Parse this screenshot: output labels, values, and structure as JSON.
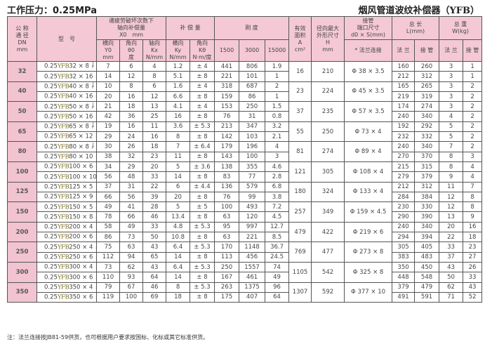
{
  "header": {
    "pressure": "工作压力：0.25MPa",
    "title": "烟风管道波纹补偿器（YFB）"
  },
  "columns": {
    "dn": "公 称\n通 径\nDN\nmm",
    "model": "型　号",
    "axial_group": "诸疲劳破坏次数下\n轴向补偿量\nX0　mm",
    "axial_cycles": [
      "1500",
      "3000",
      "15000"
    ],
    "comp_group": "补 偿 量",
    "lateral": "横向\nY0\nmm",
    "angular": "角向\nθ0\n度",
    "stiff_group": "刚 度",
    "kx": "轴向\nKx\nN/mm",
    "ky": "横向\nKy\nN/mm",
    "ktheta": "角向\nKθ\nN·m/度",
    "area": "有效\n面积\nA\ncm²",
    "h": "径向最大\n外形尺寸\nH\nmm",
    "pipe_group": "接管\n端口尺寸\nd0 × S(mm)",
    "pipe_sub": "* 法兰连接",
    "length_group": "总 长\nL(mm)",
    "weight_group": "总 重\nW(kg)",
    "flange": "法 兰",
    "pipe": "接 管"
  },
  "jf": [
    "J",
    "F"
  ],
  "groups": [
    {
      "dn": "32",
      "a": "16",
      "h": "210",
      "d": "Φ 38 × 3.5",
      "rows": [
        {
          "prefix": "0.25",
          "series": "YFB",
          "model": "32 × 8",
          "x": [
            "7",
            "6",
            "4"
          ],
          "y": "1.2",
          "t": "± 4",
          "kx": "441",
          "ky": "806",
          "kt": "1.9",
          "lf": "160",
          "lp": "260",
          "wf": "3",
          "wp": "1"
        },
        {
          "prefix": "0.25",
          "series": "YFB",
          "model": "32 × 16",
          "x": [
            "14",
            "12",
            "8"
          ],
          "y": "5.1",
          "t": "± 8",
          "kx": "221",
          "ky": "101",
          "kt": "1",
          "lf": "212",
          "lp": "312",
          "wf": "3",
          "wp": "1"
        }
      ]
    },
    {
      "dn": "40",
      "a": "23",
      "h": "224",
      "d": "Φ 45 × 3.5",
      "rows": [
        {
          "prefix": "0.25",
          "series": "YFB",
          "model": "40 × 8",
          "x": [
            "10",
            "8",
            "6"
          ],
          "y": "1.6",
          "t": "± 4",
          "kx": "318",
          "ky": "687",
          "kt": "2",
          "lf": "165",
          "lp": "265",
          "wf": "3",
          "wp": "2"
        },
        {
          "prefix": "0.25",
          "series": "YFB",
          "model": "40 × 16",
          "x": [
            "20",
            "16",
            "12"
          ],
          "y": "6.6",
          "t": "± 8",
          "kx": "159",
          "ky": "86",
          "kt": "1",
          "lf": "219",
          "lp": "319",
          "wf": "3",
          "wp": "2"
        }
      ]
    },
    {
      "dn": "50",
      "a": "37",
      "h": "235",
      "d": "Φ 57 × 3.5",
      "rows": [
        {
          "prefix": "0.25",
          "series": "YFB",
          "model": "50 × 8",
          "x": [
            "21",
            "18",
            "13"
          ],
          "y": "4.1",
          "t": "± 4",
          "kx": "153",
          "ky": "250",
          "kt": "1.5",
          "lf": "174",
          "lp": "274",
          "wf": "3",
          "wp": "2"
        },
        {
          "prefix": "0.25",
          "series": "YFB",
          "model": "50 × 16",
          "x": [
            "42",
            "36",
            "25"
          ],
          "y": "16",
          "t": "± 8",
          "kx": "76",
          "ky": "31",
          "kt": "0.8",
          "lf": "240",
          "lp": "340",
          "wf": "4",
          "wp": "2"
        }
      ]
    },
    {
      "dn": "65",
      "a": "55",
      "h": "250",
      "d": "Φ 73 × 4",
      "rows": [
        {
          "prefix": "0.25",
          "series": "YFB",
          "model": "65 × 8",
          "x": [
            "19",
            "16",
            "11"
          ],
          "y": "3.6",
          "t": "± 5.3",
          "kx": "213",
          "ky": "347",
          "kt": "3.2",
          "lf": "192",
          "lp": "292",
          "wf": "5",
          "wp": "2"
        },
        {
          "prefix": "0.25",
          "series": "YFB",
          "model": "65 × 12",
          "x": [
            "29",
            "24",
            "16"
          ],
          "y": "8",
          "t": "± 8",
          "kx": "142",
          "ky": "103",
          "kt": "2.1",
          "lf": "232",
          "lp": "332",
          "wf": "5",
          "wp": "2"
        }
      ]
    },
    {
      "dn": "80",
      "a": "81",
      "h": "274",
      "d": "Φ 89 × 4",
      "rows": [
        {
          "prefix": "0.25",
          "series": "YFB",
          "model": "80 × 8",
          "x": [
            "30",
            "26",
            "18"
          ],
          "y": "7",
          "t": "± 6.4",
          "kx": "179",
          "ky": "196",
          "kt": "4",
          "lf": "240",
          "lp": "340",
          "wf": "7",
          "wp": "2"
        },
        {
          "prefix": "0.25",
          "series": "YFB",
          "model": "80 × 10",
          "x": [
            "38",
            "32",
            "23"
          ],
          "y": "11",
          "t": "± 8",
          "kx": "143",
          "ky": "100",
          "kt": "3",
          "lf": "270",
          "lp": "370",
          "wf": "8",
          "wp": "3"
        }
      ]
    },
    {
      "dn": "100",
      "a": "121",
      "h": "305",
      "d": "Φ 108 × 4",
      "rows": [
        {
          "prefix": "0.25",
          "series": "YFB",
          "model": "100 × 6",
          "x": [
            "34",
            "29",
            "20"
          ],
          "y": "5",
          "t": "± 3.6",
          "kx": "138",
          "ky": "355",
          "kt": "4.6",
          "lf": "215",
          "lp": "315",
          "wf": "8",
          "wp": "4"
        },
        {
          "prefix": "0.25",
          "series": "YFB",
          "model": "100 × 10",
          "x": [
            "56",
            "48",
            "33"
          ],
          "y": "14",
          "t": "± 8",
          "kx": "83",
          "ky": "77",
          "kt": "2.8",
          "lf": "279",
          "lp": "379",
          "wf": "9",
          "wp": "4"
        }
      ]
    },
    {
      "dn": "125",
      "a": "180",
      "h": "324",
      "d": "Φ 133 × 4",
      "rows": [
        {
          "prefix": "0.25",
          "series": "YFB",
          "model": "125 × 5",
          "x": [
            "37",
            "31",
            "22"
          ],
          "y": "6",
          "t": "± 4.4",
          "kx": "136",
          "ky": "579",
          "kt": "6.8",
          "lf": "212",
          "lp": "312",
          "wf": "11",
          "wp": "7"
        },
        {
          "prefix": "0.25",
          "series": "YFB",
          "model": "125 × 9",
          "x": [
            "66",
            "56",
            "39"
          ],
          "y": "20",
          "t": "± 8",
          "kx": "76",
          "ky": "99",
          "kt": "3.8",
          "lf": "284",
          "lp": "384",
          "wf": "12",
          "wp": "8"
        }
      ]
    },
    {
      "dn": "150",
      "a": "257",
      "h": "349",
      "d": "Φ 159 × 4.5",
      "rows": [
        {
          "prefix": "0.25",
          "series": "YFB",
          "model": "150 × 5",
          "x": [
            "49",
            "41",
            "28"
          ],
          "y": "5",
          "t": "± 5",
          "kx": "100",
          "ky": "493",
          "kt": "7.2",
          "lf": "230",
          "lp": "330",
          "wf": "12",
          "wp": "8"
        },
        {
          "prefix": "0.25",
          "series": "YFB",
          "model": "150 × 8",
          "x": [
            "78",
            "66",
            "46"
          ],
          "y": "13.4",
          "t": "± 8",
          "kx": "63",
          "ky": "120",
          "kt": "4.5",
          "lf": "290",
          "lp": "390",
          "wf": "13",
          "wp": "9"
        }
      ]
    },
    {
      "dn": "200",
      "a": "479",
      "h": "422",
      "d": "Φ 219 × 6",
      "rows": [
        {
          "prefix": "0.25",
          "series": "YFB",
          "model": "200 × 4",
          "x": [
            "58",
            "49",
            "33"
          ],
          "y": "4.8",
          "t": "± 5.3",
          "kx": "95",
          "ky": "997",
          "kt": "12.7",
          "lf": "240",
          "lp": "340",
          "wf": "20",
          "wp": "16"
        },
        {
          "prefix": "0.25",
          "series": "YFB",
          "model": "200 × 6",
          "x": [
            "86",
            "73",
            "50"
          ],
          "y": "10.8",
          "t": "± 8",
          "kx": "63",
          "ky": "221",
          "kt": "8.5",
          "lf": "294",
          "lp": "394",
          "wf": "22",
          "wp": "18"
        }
      ]
    },
    {
      "dn": "250",
      "a": "769",
      "h": "477",
      "d": "Φ 273 × 8",
      "rows": [
        {
          "prefix": "0.25",
          "series": "YFB",
          "model": "250 × 4",
          "x": [
            "75",
            "63",
            "43"
          ],
          "y": "6.4",
          "t": "± 5.3",
          "kx": "170",
          "ky": "1148",
          "kt": "36.7",
          "lf": "305",
          "lp": "405",
          "wf": "33",
          "wp": "23"
        },
        {
          "prefix": "0.25",
          "series": "YFB",
          "model": "250 × 6",
          "x": [
            "112",
            "94",
            "65"
          ],
          "y": "14",
          "t": "± 8",
          "kx": "113",
          "ky": "456",
          "kt": "24.5",
          "lf": "383",
          "lp": "483",
          "wf": "37",
          "wp": "27"
        }
      ]
    },
    {
      "dn": "300",
      "a": "1105",
      "h": "542",
      "d": "Φ 325 × 8",
      "rows": [
        {
          "prefix": "0.25",
          "series": "YFB",
          "model": "300 × 4",
          "x": [
            "73",
            "62",
            "43"
          ],
          "y": "6.4",
          "t": "± 5.3",
          "kx": "250",
          "ky": "1557",
          "kt": "74",
          "lf": "350",
          "lp": "450",
          "wf": "43",
          "wp": "26"
        },
        {
          "prefix": "0.25",
          "series": "YFB",
          "model": "300 × 6",
          "x": [
            "110",
            "93",
            "64"
          ],
          "y": "14",
          "t": "± 8",
          "kx": "167",
          "ky": "461",
          "kt": "49",
          "lf": "448",
          "lp": "548",
          "wf": "50",
          "wp": "33"
        }
      ]
    },
    {
      "dn": "350",
      "a": "1307",
      "h": "592",
      "d": "Φ 377 × 10",
      "rows": [
        {
          "prefix": "0.25",
          "series": "YFB",
          "model": "350 × 4",
          "x": [
            "79",
            "67",
            "46"
          ],
          "y": "8",
          "t": "± 5.3",
          "kx": "263",
          "ky": "1375",
          "kt": "96",
          "lf": "379",
          "lp": "479",
          "wf": "62",
          "wp": "43"
        },
        {
          "prefix": "0.25",
          "series": "YFB",
          "model": "350 × 6",
          "x": [
            "119",
            "100",
            "69"
          ],
          "y": "18",
          "t": "± 8",
          "kx": "175",
          "ky": "407",
          "kt": "64",
          "lf": "491",
          "lp": "591",
          "wf": "71",
          "wp": "52"
        }
      ]
    }
  ],
  "note": "注：法兰连接按JB81-59供货，也可根据用户要求按国标、化标或其它标准供货。"
}
